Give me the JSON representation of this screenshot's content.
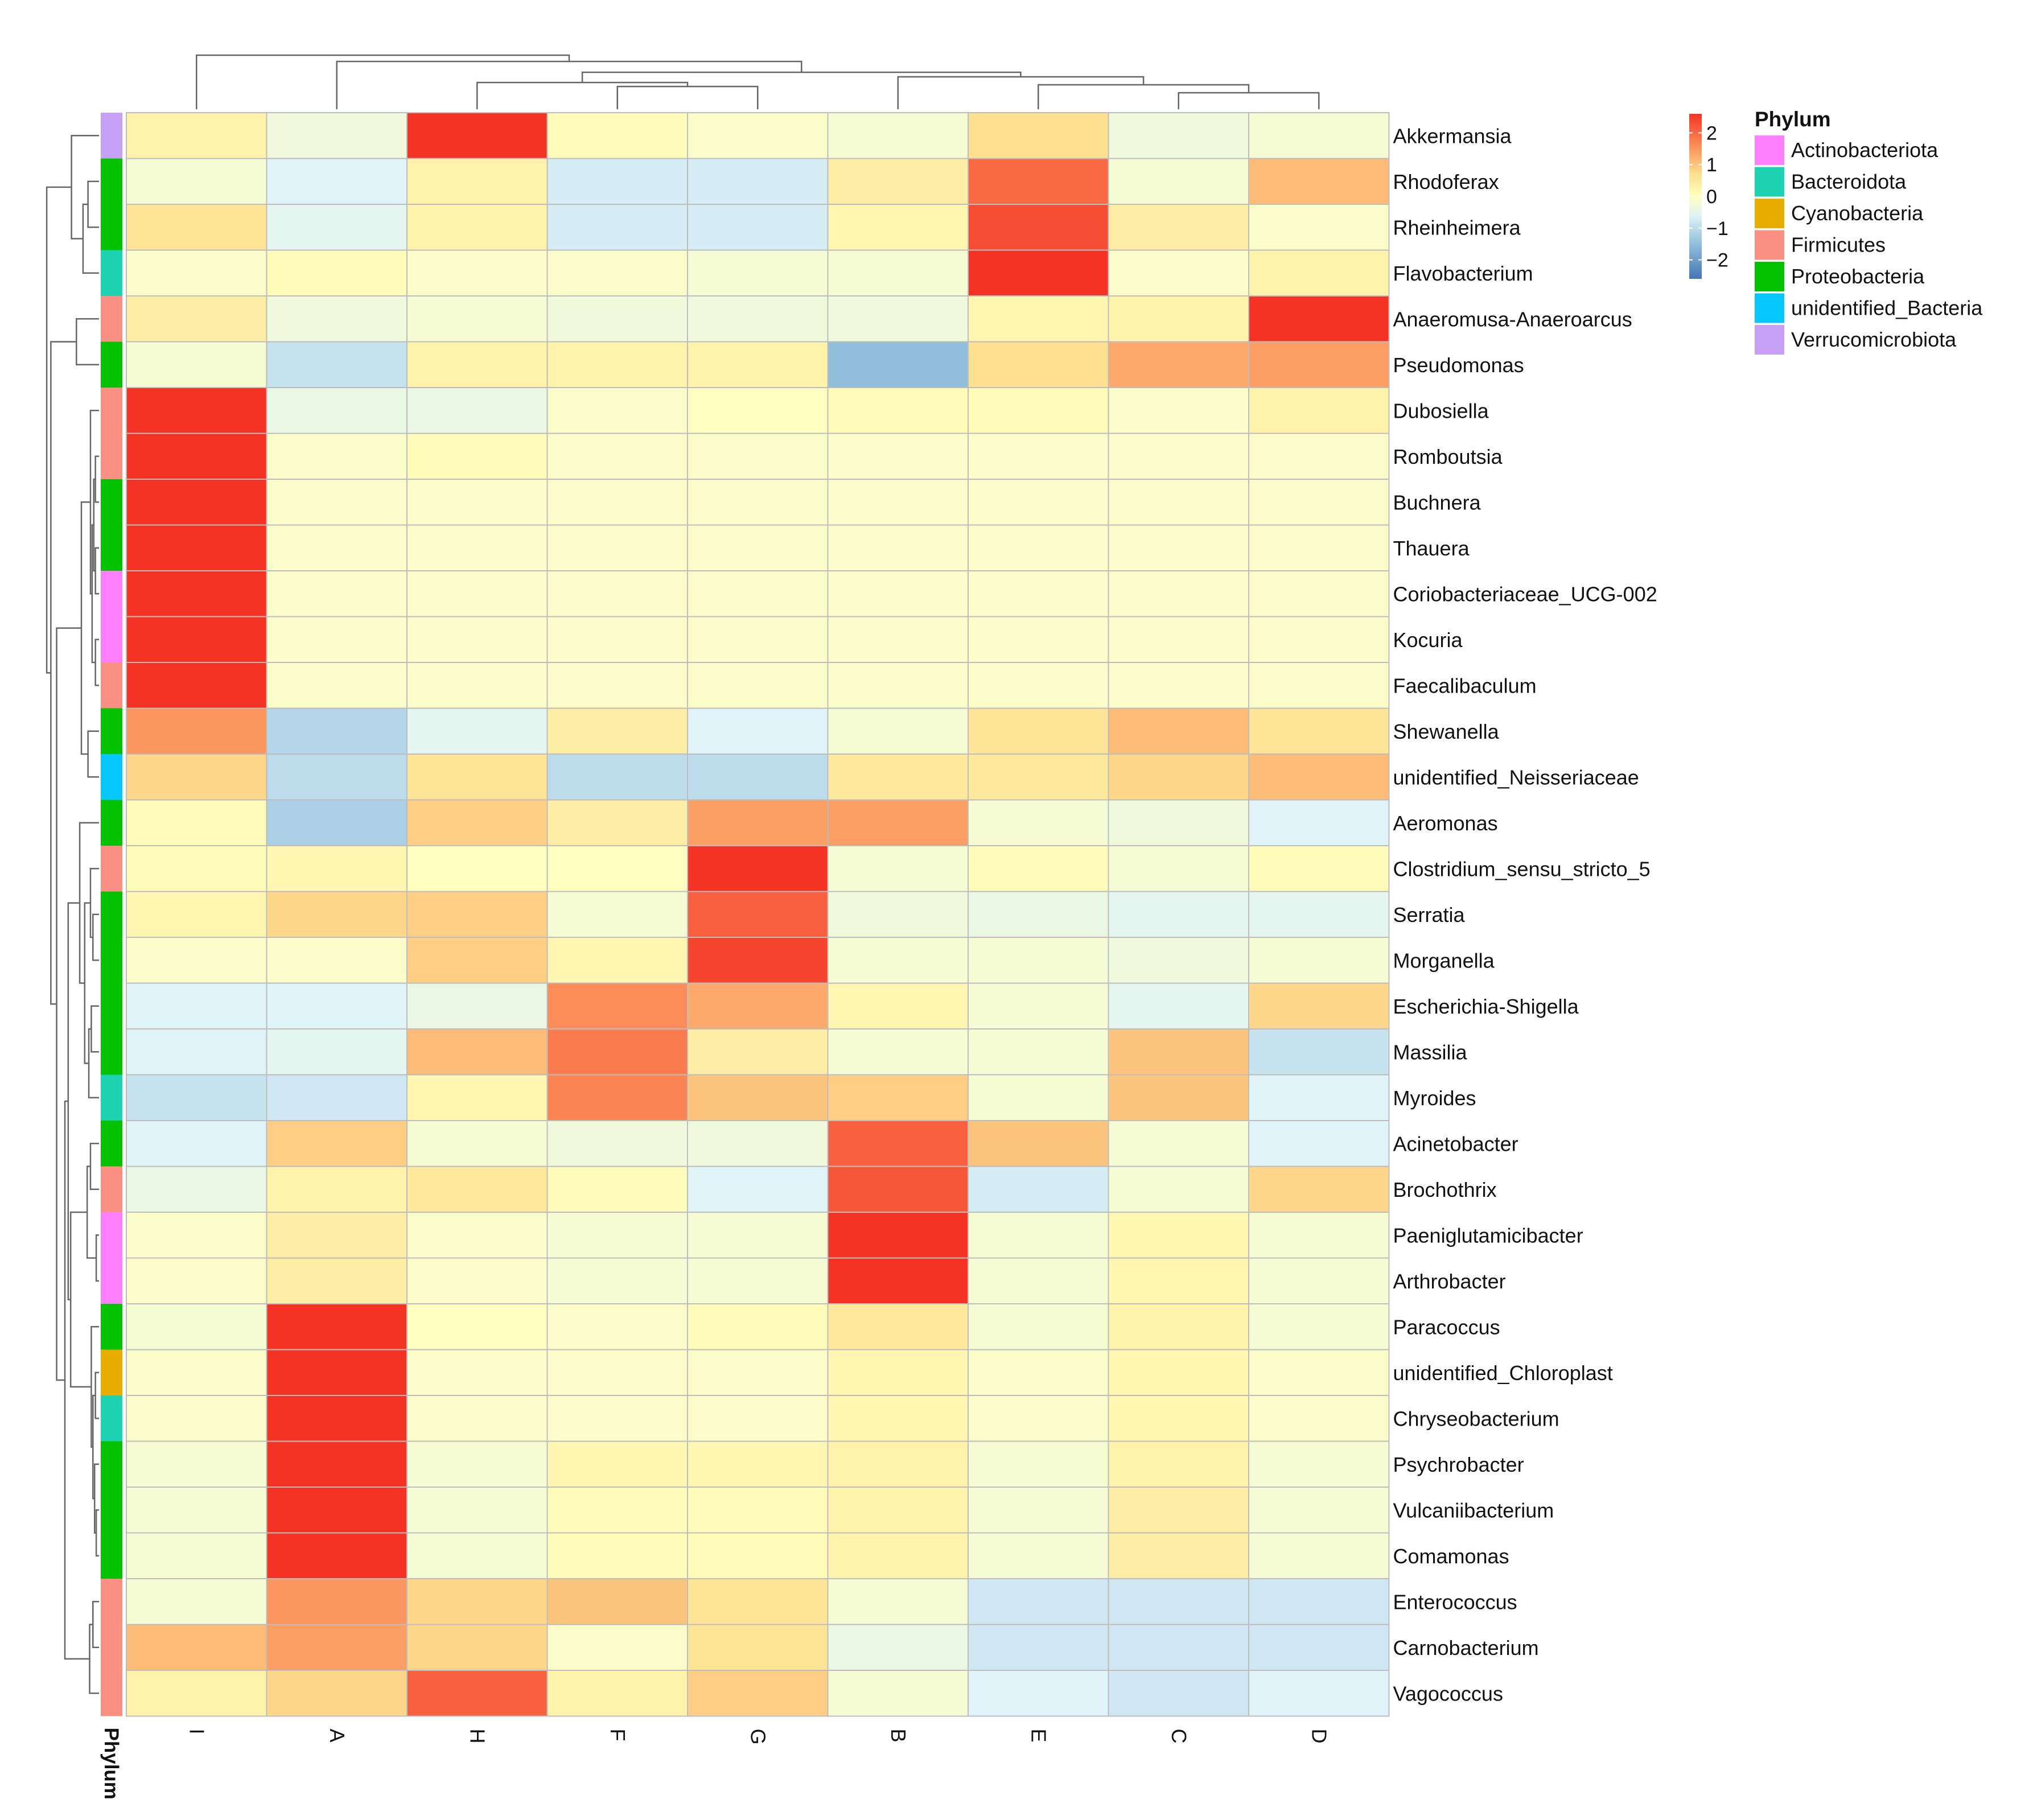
{
  "chart_data": {
    "type": "heatmap",
    "columns": [
      "I",
      "A",
      "H",
      "F",
      "G",
      "B",
      "E",
      "C",
      "D"
    ],
    "rows": [
      "Akkermansia",
      "Rhodoferax",
      "Rheinheimera",
      "Flavobacterium",
      "Anaeromusa-Anaeroarcus",
      "Pseudomonas",
      "Dubosiella",
      "Romboutsia",
      "Buchnera",
      "Thauera",
      "Coriobacteriaceae_UCG-002",
      "Kocuria",
      "Faecalibaculum",
      "Shewanella",
      "unidentified_Neisseriaceae",
      "Aeromonas",
      "Clostridium_sensu_stricto_5",
      "Serratia",
      "Morganella",
      "Escherichia-Shigella",
      "Massilia",
      "Myroides",
      "Acinetobacter",
      "Brochothrix",
      "Paeniglutamicibacter",
      "Arthrobacter",
      "Paracoccus",
      "unidentified_Chloroplast",
      "Chryseobacterium",
      "Psychrobacter",
      "Vulcaniibacterium",
      "Comamonas",
      "Enterococcus",
      "Carnobacterium",
      "Vagococcus"
    ],
    "row_phylum": [
      "Verrucomicrobiota",
      "Proteobacteria",
      "Proteobacteria",
      "Bacteroidota",
      "Firmicutes",
      "Proteobacteria",
      "Firmicutes",
      "Firmicutes",
      "Proteobacteria",
      "Proteobacteria",
      "Actinobacteriota",
      "Actinobacteriota",
      "Firmicutes",
      "Proteobacteria",
      "unidentified_Bacteria",
      "Proteobacteria",
      "Firmicutes",
      "Proteobacteria",
      "Proteobacteria",
      "Proteobacteria",
      "Proteobacteria",
      "Bacteroidota",
      "Proteobacteria",
      "Firmicutes",
      "Actinobacteriota",
      "Actinobacteriota",
      "Proteobacteria",
      "Cyanobacteria",
      "Bacteroidota",
      "Proteobacteria",
      "Proteobacteria",
      "Proteobacteria",
      "Firmicutes",
      "Firmicutes",
      "Firmicutes"
    ],
    "values": [
      [
        0.3,
        -0.3,
        2.6,
        0.1,
        -0.1,
        -0.2,
        0.7,
        -0.3,
        -0.2
      ],
      [
        -0.2,
        -0.6,
        0.3,
        -0.7,
        -0.7,
        0.4,
        2.0,
        -0.2,
        1.1
      ],
      [
        0.6,
        -0.5,
        0.3,
        -0.7,
        -0.7,
        0.2,
        2.3,
        0.4,
        -0.1
      ],
      [
        -0.1,
        0.1,
        -0.1,
        -0.1,
        -0.2,
        -0.2,
        2.6,
        -0.1,
        0.3
      ],
      [
        0.4,
        -0.3,
        -0.2,
        -0.3,
        -0.3,
        -0.3,
        0.2,
        0.3,
        2.6
      ],
      [
        -0.2,
        -0.9,
        0.3,
        0.3,
        0.3,
        -1.5,
        0.7,
        1.3,
        1.4
      ],
      [
        2.7,
        -0.4,
        -0.4,
        -0.1,
        0.0,
        0.1,
        0.1,
        -0.1,
        0.3
      ],
      [
        2.7,
        -0.1,
        0.1,
        -0.1,
        -0.1,
        -0.1,
        -0.1,
        -0.1,
        -0.1
      ],
      [
        2.7,
        -0.1,
        -0.1,
        -0.1,
        -0.1,
        -0.1,
        -0.1,
        -0.1,
        -0.1
      ],
      [
        2.7,
        -0.1,
        -0.1,
        -0.1,
        -0.1,
        -0.1,
        -0.1,
        -0.1,
        -0.1
      ],
      [
        2.7,
        -0.1,
        -0.1,
        -0.1,
        -0.1,
        -0.1,
        -0.1,
        -0.1,
        -0.1
      ],
      [
        2.7,
        -0.1,
        -0.1,
        -0.1,
        -0.1,
        -0.1,
        -0.1,
        -0.1,
        -0.1
      ],
      [
        2.7,
        -0.1,
        -0.1,
        -0.1,
        -0.1,
        -0.1,
        -0.1,
        -0.1,
        -0.1
      ],
      [
        1.5,
        -1.1,
        -0.5,
        0.4,
        -0.6,
        -0.2,
        0.6,
        1.1,
        0.6
      ],
      [
        0.8,
        -1.0,
        0.6,
        -1.0,
        -1.0,
        0.5,
        0.5,
        0.8,
        1.1
      ],
      [
        0.1,
        -1.2,
        0.9,
        0.4,
        1.4,
        1.4,
        -0.2,
        -0.3,
        -0.6
      ],
      [
        0.1,
        0.2,
        0.0,
        0.0,
        2.7,
        -0.2,
        0.1,
        -0.2,
        0.1
      ],
      [
        0.2,
        0.8,
        0.9,
        -0.2,
        2.1,
        -0.3,
        -0.4,
        -0.5,
        -0.5
      ],
      [
        -0.1,
        -0.1,
        0.9,
        0.2,
        2.4,
        -0.2,
        -0.2,
        -0.3,
        -0.2
      ],
      [
        -0.6,
        -0.6,
        -0.4,
        1.6,
        1.3,
        0.2,
        -0.2,
        -0.5,
        0.8
      ],
      [
        -0.6,
        -0.5,
        1.1,
        1.8,
        0.4,
        -0.2,
        -0.2,
        1.0,
        -0.9
      ],
      [
        -0.9,
        -0.8,
        0.2,
        1.7,
        1.0,
        0.9,
        -0.2,
        1.0,
        -0.6
      ],
      [
        -0.6,
        0.9,
        -0.2,
        -0.3,
        -0.3,
        2.1,
        1.0,
        -0.2,
        -0.6
      ],
      [
        -0.4,
        0.3,
        0.5,
        0.1,
        -0.6,
        2.2,
        -0.7,
        -0.2,
        0.8
      ],
      [
        -0.1,
        0.4,
        -0.1,
        -0.2,
        -0.2,
        2.6,
        -0.2,
        0.2,
        -0.2
      ],
      [
        -0.1,
        0.4,
        -0.1,
        -0.2,
        -0.2,
        2.6,
        -0.2,
        0.2,
        -0.2
      ],
      [
        -0.2,
        2.7,
        0.0,
        -0.1,
        0.1,
        0.5,
        -0.2,
        0.3,
        -0.2
      ],
      [
        -0.1,
        2.7,
        -0.1,
        -0.1,
        -0.1,
        0.2,
        -0.1,
        0.2,
        -0.1
      ],
      [
        -0.1,
        2.7,
        -0.1,
        -0.1,
        -0.1,
        0.2,
        -0.1,
        0.2,
        -0.1
      ],
      [
        -0.2,
        2.7,
        -0.2,
        0.2,
        0.2,
        0.3,
        -0.2,
        0.3,
        -0.2
      ],
      [
        -0.2,
        2.7,
        -0.2,
        0.1,
        0.1,
        0.3,
        -0.2,
        0.4,
        -0.2
      ],
      [
        -0.2,
        2.7,
        -0.2,
        0.1,
        0.1,
        0.3,
        -0.2,
        0.4,
        -0.2
      ],
      [
        -0.2,
        1.5,
        0.8,
        1.0,
        0.6,
        -0.2,
        -0.8,
        -0.8,
        -0.8
      ],
      [
        1.1,
        1.4,
        0.8,
        -0.1,
        0.6,
        -0.4,
        -0.8,
        -0.8,
        -0.8
      ],
      [
        0.3,
        0.8,
        2.1,
        0.3,
        0.9,
        -0.2,
        -0.6,
        -0.8,
        -0.6
      ]
    ],
    "color_scale": {
      "ticks": [
        2,
        1,
        0,
        -1,
        -2
      ],
      "tick_labels": [
        "2",
        "1",
        "0",
        "−1",
        "−2"
      ],
      "colors": [
        "#4575b4",
        "#91bfdb",
        "#e0f3f8",
        "#ffffbf",
        "#fee090",
        "#fc8d59",
        "#f43324"
      ],
      "stops": [
        -2.6,
        -1.5,
        -0.6,
        0.0,
        0.7,
        1.6,
        2.6
      ]
    },
    "annotation_label": "Phylum",
    "legend": {
      "title": "Phylum",
      "position": "right",
      "items": [
        {
          "name": "Actinobacteriota",
          "color": "#ff80ff"
        },
        {
          "name": "Bacteroidota",
          "color": "#1ed3b1"
        },
        {
          "name": "Cyanobacteria",
          "color": "#e9ad00"
        },
        {
          "name": "Firmicutes",
          "color": "#fa8f83"
        },
        {
          "name": "Proteobacteria",
          "color": "#04c200"
        },
        {
          "name": "unidentified_Bacteria",
          "color": "#06c8ff"
        },
        {
          "name": "Verrucomicrobiota",
          "color": "#c7a1f5"
        }
      ]
    },
    "grid": true,
    "cell_border_color": "#bdbdbd",
    "dendrogram_color": "#666666"
  }
}
